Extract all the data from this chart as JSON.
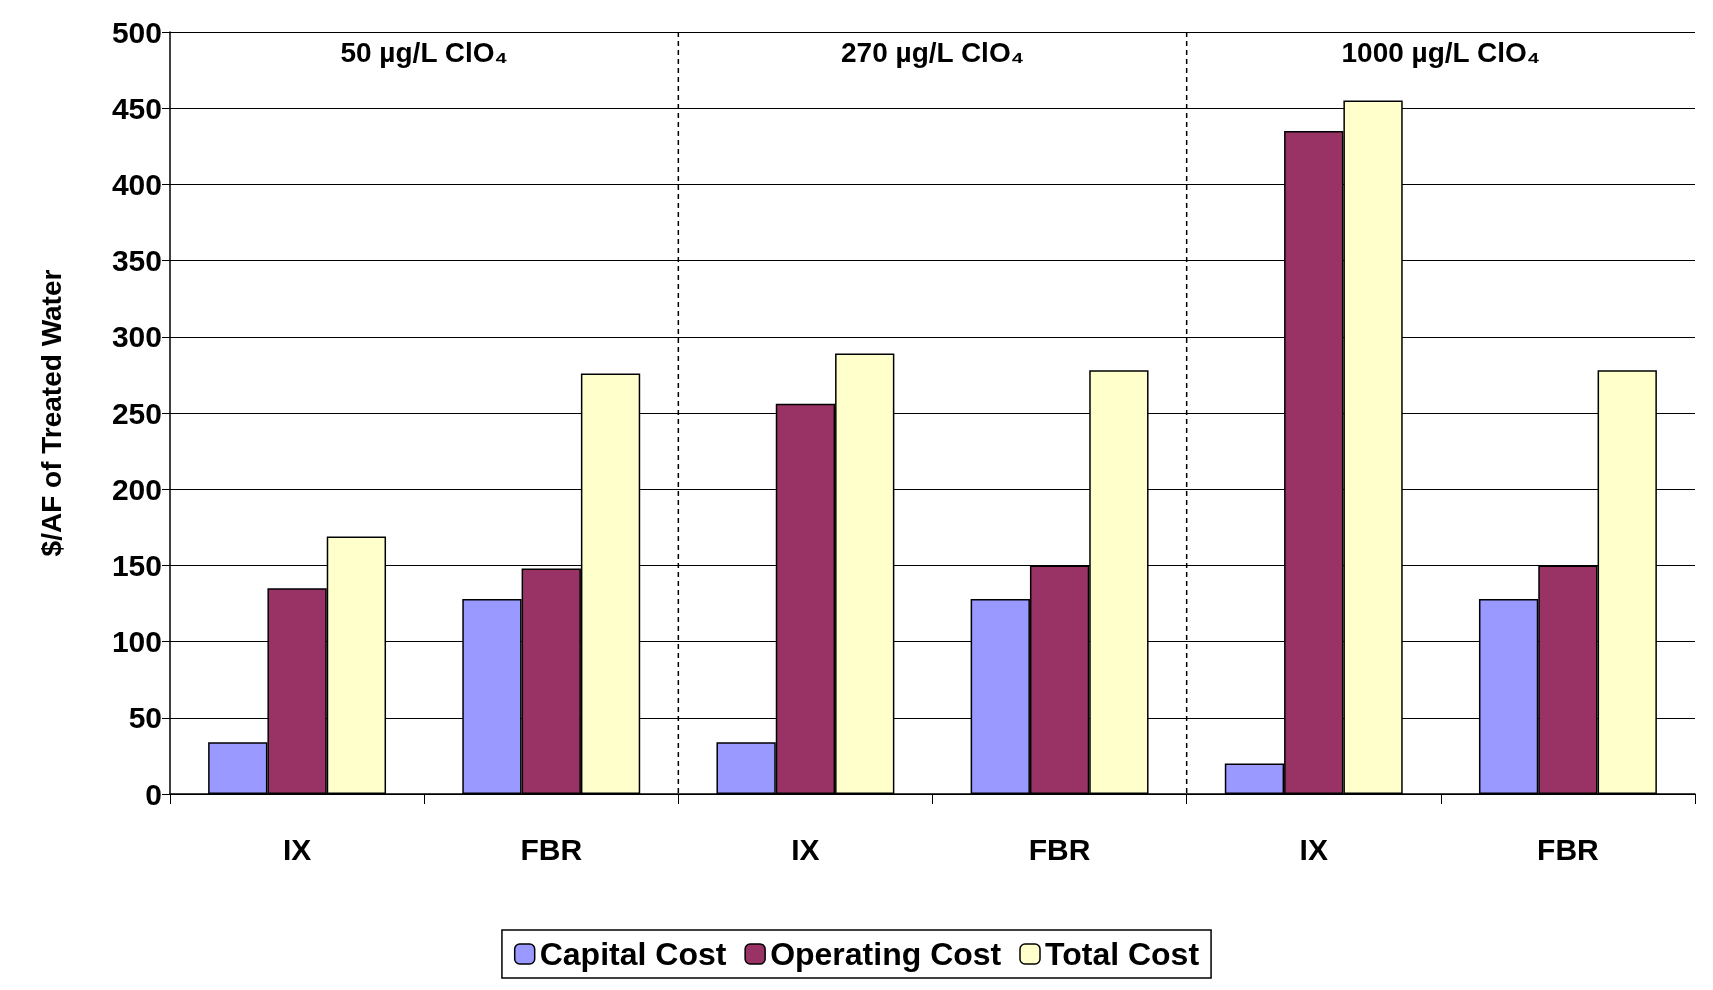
{
  "chart_data": {
    "type": "bar",
    "ylabel": "$/AF of Treated Water",
    "categories": [
      "IX",
      "FBR",
      "IX",
      "FBR",
      "IX",
      "FBR"
    ],
    "series": [
      {
        "name": "Capital Cost",
        "color": "#9999ff",
        "values": [
          34,
          128,
          34,
          128,
          20,
          128
        ]
      },
      {
        "name": "Operating Cost",
        "color": "#993366",
        "values": [
          135,
          148,
          256,
          150,
          435,
          150
        ]
      },
      {
        "name": "Total Cost",
        "color": "#ffffcc",
        "values": [
          169,
          276,
          289,
          278,
          455,
          278
        ]
      }
    ],
    "ylim": [
      0,
      500
    ],
    "yticks": [
      0,
      50,
      100,
      150,
      200,
      250,
      300,
      350,
      400,
      450,
      500
    ],
    "grid": "y",
    "legend": "bottom",
    "annotations": [
      "50 µg/L ClO₄",
      "270 µg/L ClO₄",
      "1000 µg/L ClO₄"
    ]
  }
}
